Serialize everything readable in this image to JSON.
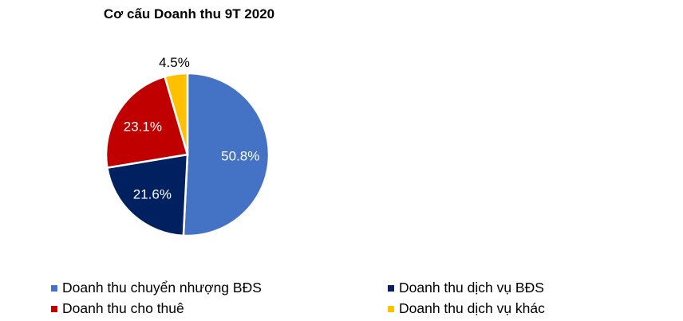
{
  "chart_data": {
    "type": "pie",
    "title": "Cơ cấu Doanh thu 9T 2020",
    "start_angle": "top, clockwise",
    "legend_placement": "bottom",
    "slices": [
      {
        "name": "Doanh thu chuyển nhượng BĐS",
        "value": 50.8,
        "label": "50.8%",
        "color": "#4472C4",
        "label_color": "#ffffff"
      },
      {
        "name": "Doanh thu dịch vụ BĐS",
        "value": 21.6,
        "label": "21.6%",
        "color": "#002060",
        "label_color": "#ffffff"
      },
      {
        "name": "Doanh thu cho thuê",
        "value": 23.1,
        "label": "23.1%",
        "color": "#C00000",
        "label_color": "#ffffff"
      },
      {
        "name": "Doanh thu dịch vụ khác",
        "value": 4.5,
        "label": "4.5%",
        "color": "#FFC000",
        "label_color": "#000000"
      }
    ]
  }
}
